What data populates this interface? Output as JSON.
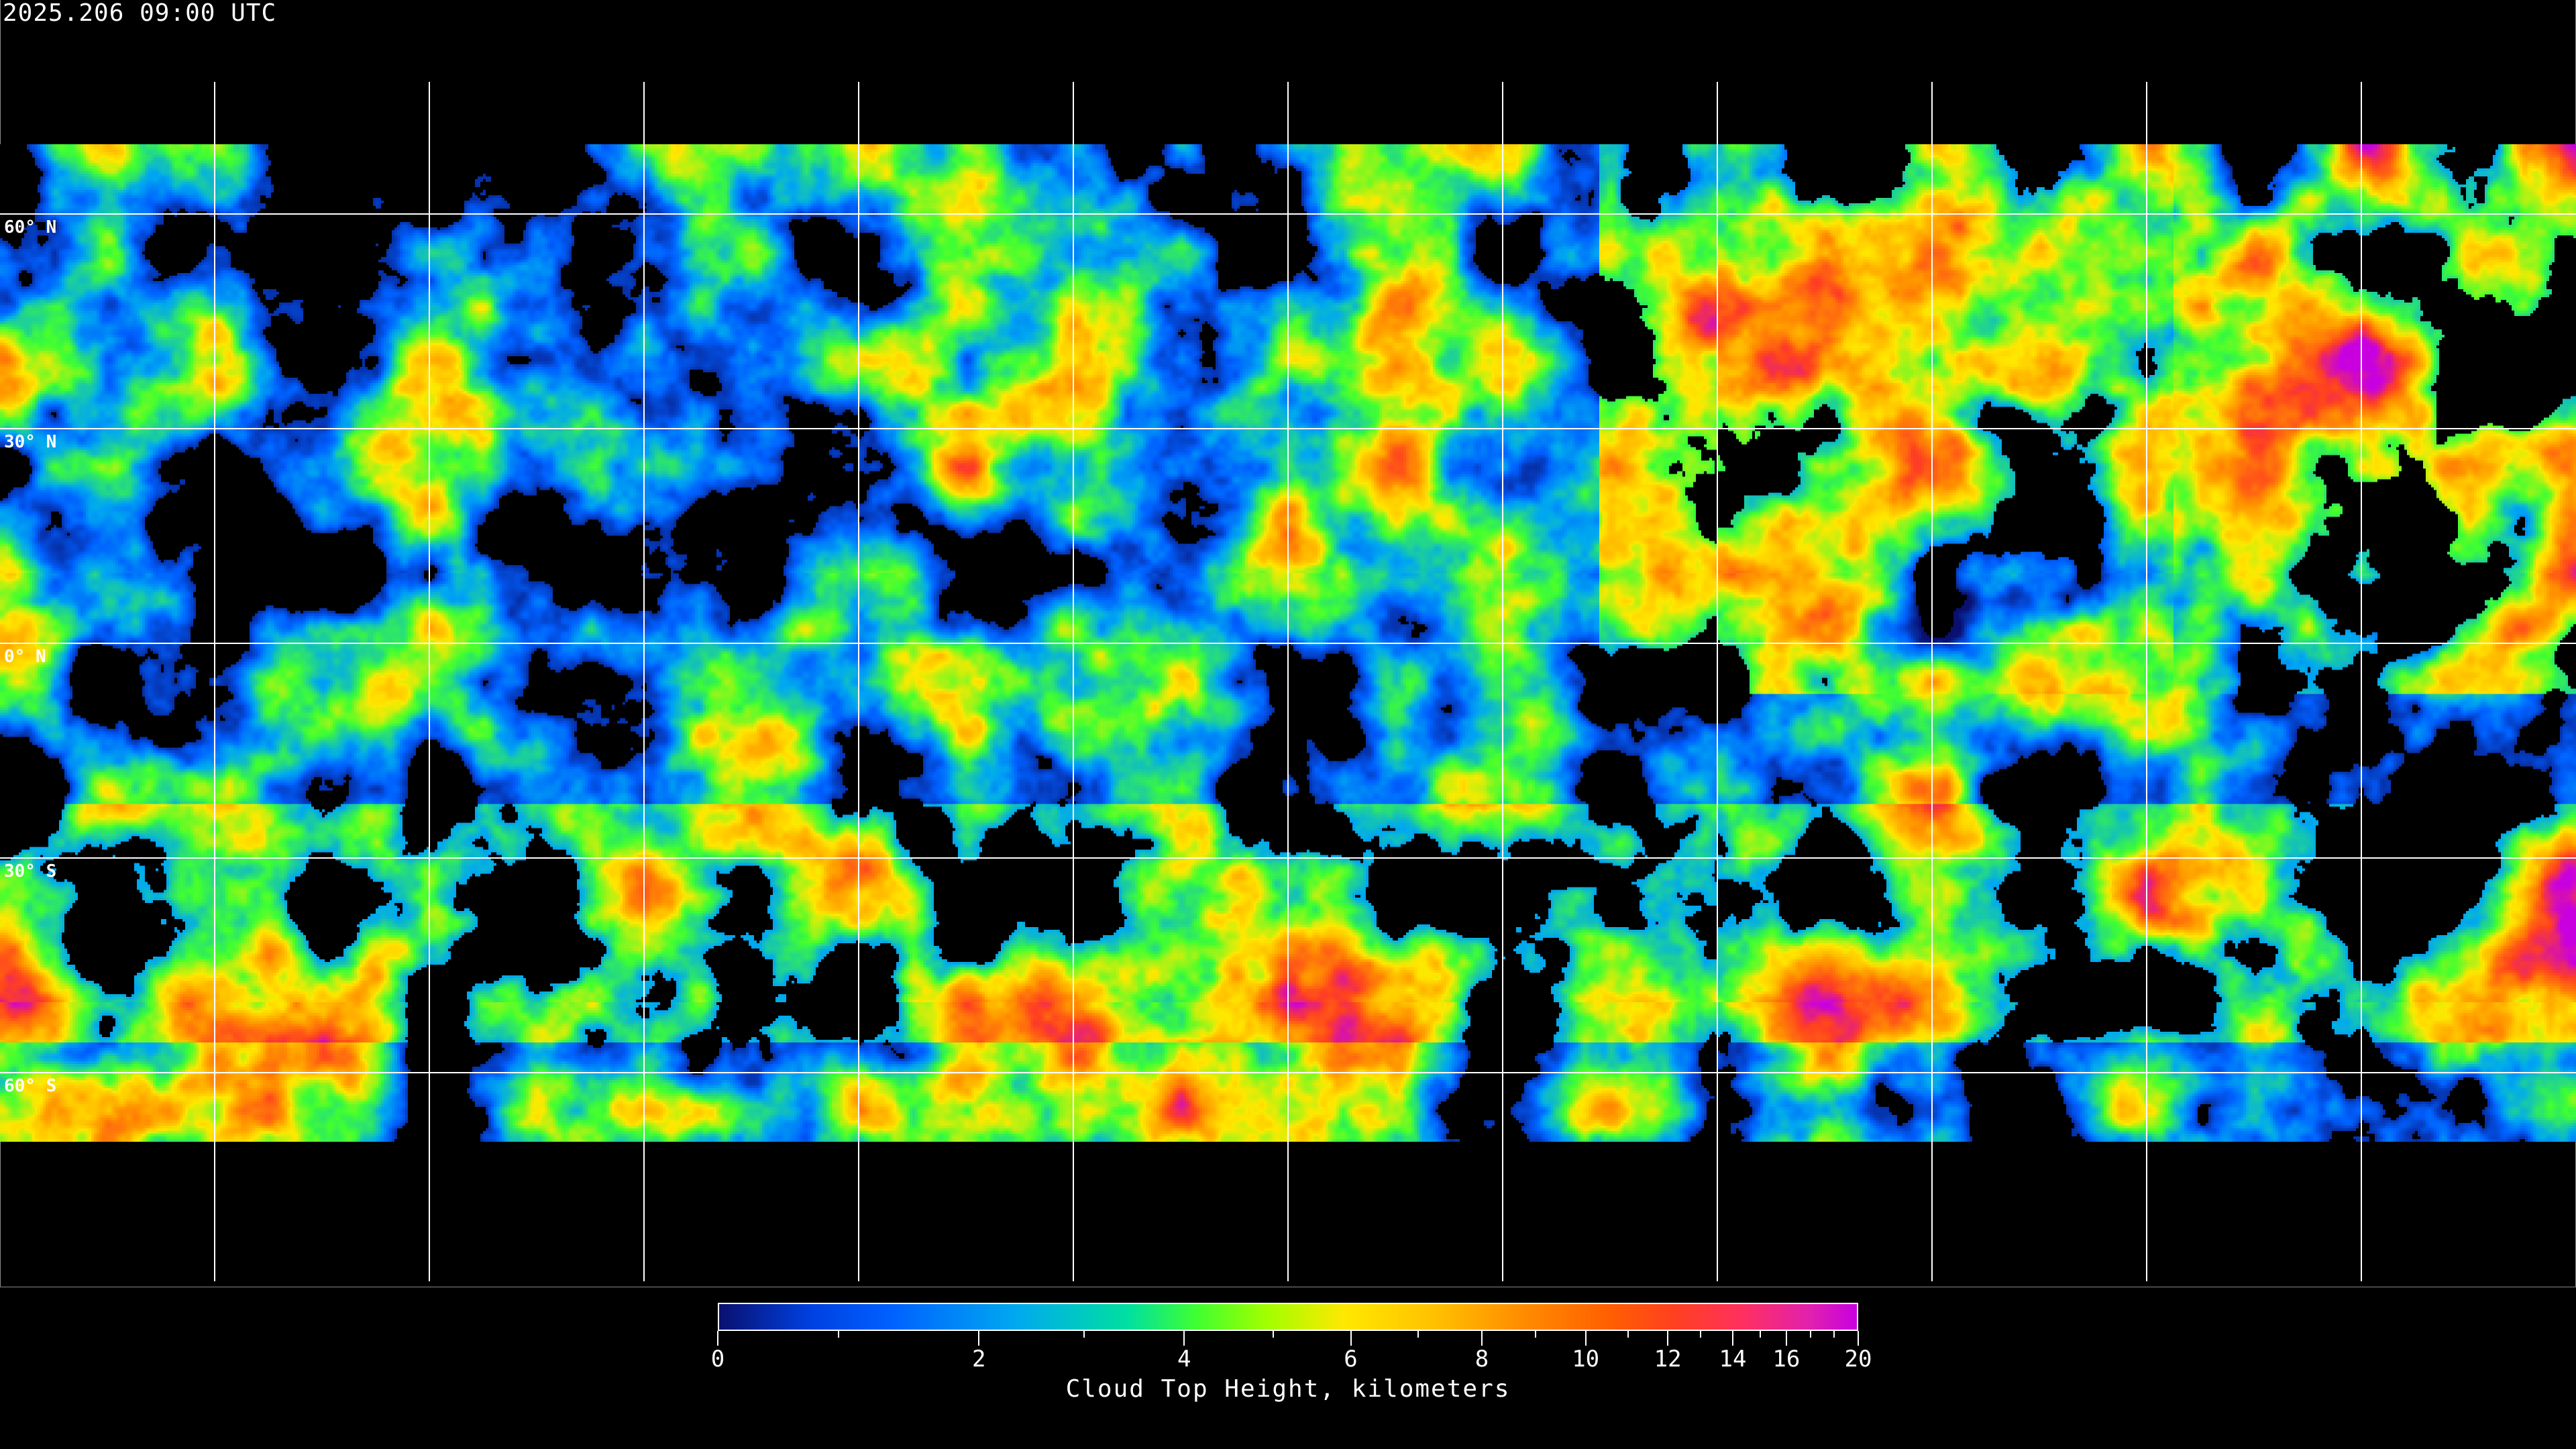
{
  "title": "2025.206 09:00 UTC",
  "map": {
    "projection": "equirectangular",
    "latitude_labels": [
      "60° N",
      "30° N",
      "0° N",
      "30° S",
      "60° S"
    ],
    "grid": true,
    "coastlines": true
  },
  "colorbar": {
    "label": "Cloud Top Height, kilometers",
    "range": [
      0,
      20
    ],
    "major_ticks": [
      "0",
      "2",
      "4",
      "6",
      "8",
      "10",
      "12",
      "14",
      "16",
      "20"
    ],
    "colors": [
      "#0a1070",
      "#0060ff",
      "#00a8f0",
      "#40ff30",
      "#ffe800",
      "#ff9000",
      "#ff4020",
      "#c800e0"
    ]
  }
}
